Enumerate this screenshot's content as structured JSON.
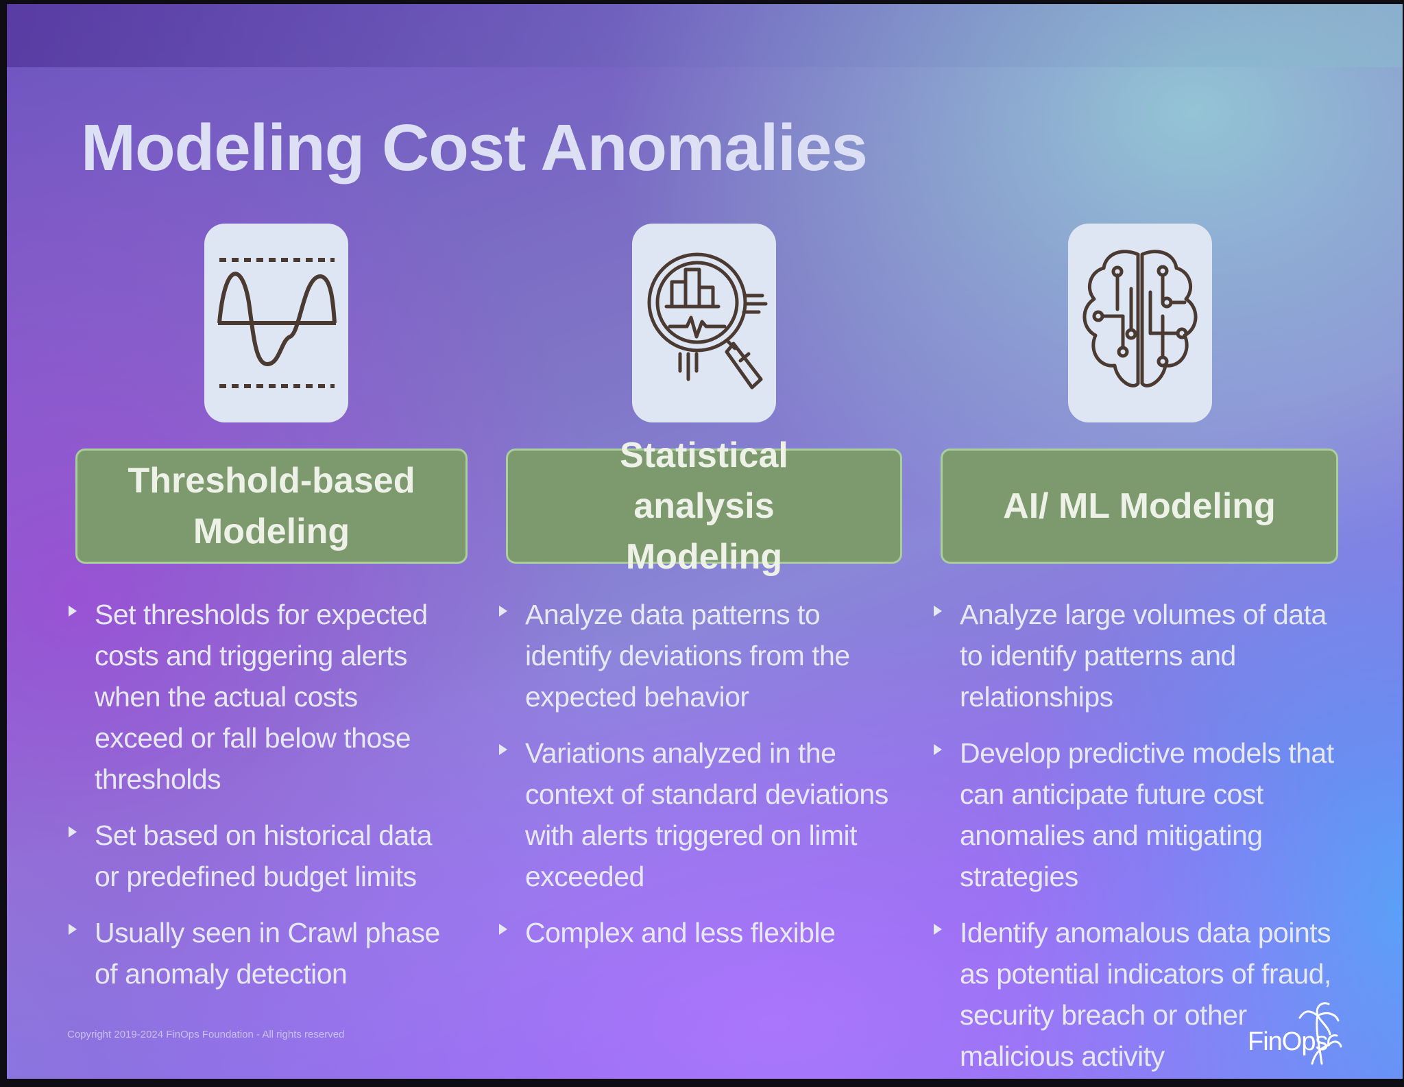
{
  "slide": {
    "title": "Modeling Cost Anomalies",
    "columns": [
      {
        "icon": "threshold-wave-icon",
        "heading": "Threshold-based Modeling",
        "bullets": [
          "Set thresholds for expected costs and triggering alerts when the actual costs exceed or fall below those thresholds",
          "Set based on historical data or predefined budget limits",
          "Usually seen in Crawl phase of anomaly detection"
        ]
      },
      {
        "icon": "magnifier-chart-icon",
        "heading": "Statistical analysis Modeling",
        "bullets": [
          "Analyze data patterns to identify deviations from the expected behavior",
          "Variations analyzed in the context of standard deviations with alerts triggered on limit exceeded",
          "Complex and less flexible"
        ]
      },
      {
        "icon": "circuit-brain-icon",
        "heading": "AI/ ML Modeling",
        "bullets": [
          "Analyze large volumes of data to identify patterns and relationships",
          "Develop predictive models that can anticipate future cost anomalies and mitigating strategies",
          "Identify anomalous data points as potential indicators of fraud, security breach or other malicious activity"
        ]
      }
    ],
    "copyright": "Copyright 2019-2024 FinOps Foundation - All rights reserved",
    "logo_text": "FinOps"
  },
  "colors": {
    "header_fill": "#7d9a6e",
    "header_border": "#a9cf9a",
    "icon_card": "#dfe6f3",
    "icon_stroke": "#4a3a32",
    "title": "#dde0f4"
  }
}
